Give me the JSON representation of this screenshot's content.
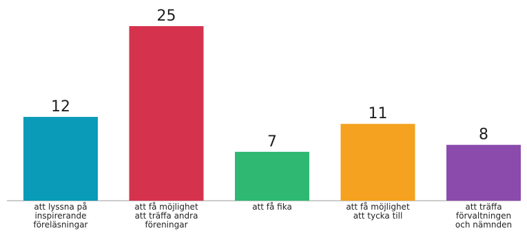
{
  "chart_data": {
    "type": "bar",
    "categories": [
      [
        "att lyssna på",
        "inspirerande",
        "föreläsningar"
      ],
      [
        "att få möjlighet",
        "att träffa andra",
        "föreningar"
      ],
      [
        "att få fika"
      ],
      [
        "att få möjlighet",
        "att tycka till"
      ],
      [
        "att träffa",
        "förvaltningen",
        "och nämnden"
      ]
    ],
    "values": [
      12,
      25,
      7,
      11,
      8
    ],
    "colors": [
      "#0a9bb9",
      "#d5334d",
      "#2eb872",
      "#f4a21f",
      "#8b4bac"
    ],
    "ylim": [
      0,
      25
    ],
    "grid": false,
    "axis_color": "#9a9a9a"
  }
}
